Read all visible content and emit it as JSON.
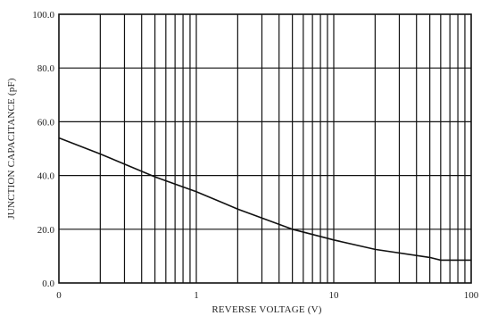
{
  "chart_data": {
    "type": "line",
    "title": "",
    "xlabel": "REVERSE VOLTAGE (V)",
    "ylabel": "JUNCTION CAPACITANCE (pF)",
    "x_scale": "log",
    "xlim": [
      0.1,
      100
    ],
    "ylim": [
      0,
      100
    ],
    "x_tick_values": [
      0.1,
      1,
      10,
      100
    ],
    "x_tick_labels": [
      "0",
      "1",
      "10",
      "100"
    ],
    "y_tick_values": [
      0,
      20,
      40,
      60,
      80,
      100
    ],
    "y_tick_labels": [
      "0.0",
      "20.0",
      "40.0",
      "60.0",
      "80.0",
      "100.0"
    ],
    "grid": true,
    "series": [
      {
        "x": [
          0.1,
          0.2,
          0.5,
          1,
          2,
          5,
          10,
          20,
          50,
          60,
          70,
          100
        ],
        "y": [
          54,
          48,
          39.5,
          34,
          27.5,
          20,
          16,
          12.5,
          9.5,
          8.5,
          8.5,
          8.5
        ]
      }
    ]
  }
}
